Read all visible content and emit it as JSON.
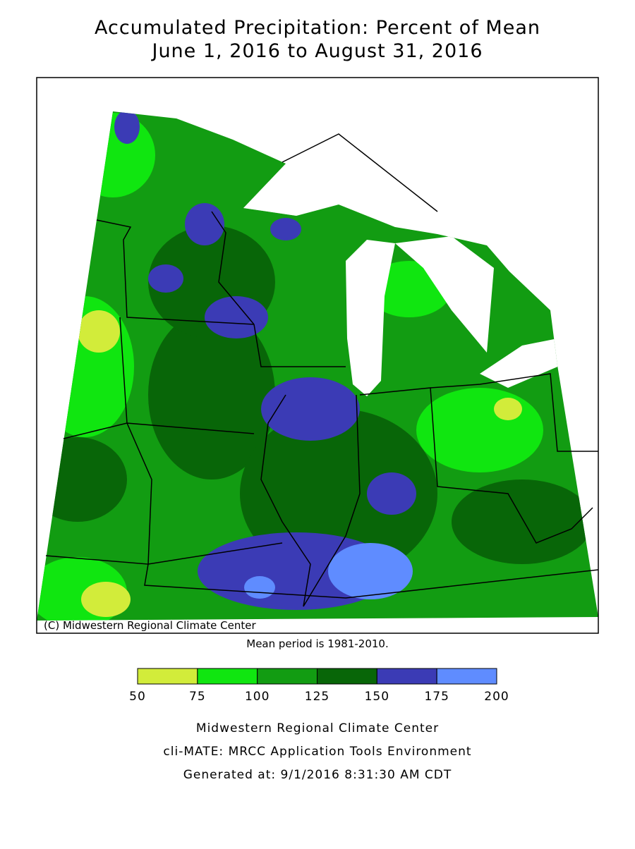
{
  "header": {
    "title": "Accumulated Precipitation: Percent of Mean",
    "subtitle": "June 1, 2016 to August 31, 2016"
  },
  "map": {
    "copyright": "(C) Midwestern Regional Climate Center",
    "note": "Mean period is 1981-2010."
  },
  "legend": {
    "bins": [
      50,
      75,
      100,
      125,
      150,
      175,
      200
    ],
    "colors": [
      "#d2ec3a",
      "#10e610",
      "#129c12",
      "#086608",
      "#3b3bb5",
      "#5f8cff"
    ]
  },
  "footer": {
    "lines": [
      "Midwestern Regional Climate Center",
      "cli-MATE: MRCC Application Tools Environment",
      "Generated at: 9/1/2016 8:31:30 AM CDT"
    ]
  }
}
